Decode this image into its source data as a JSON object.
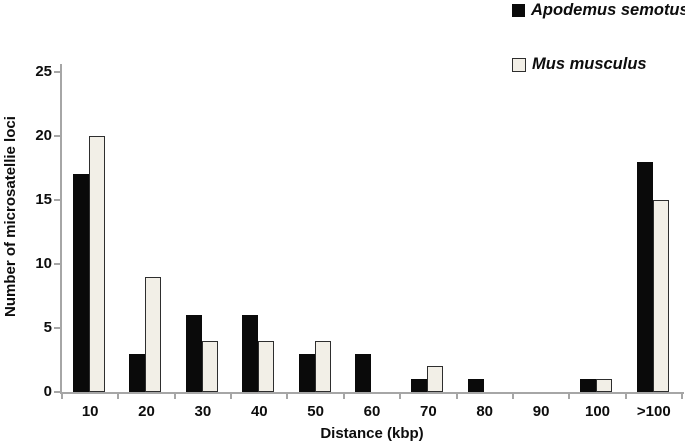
{
  "chart_data": {
    "type": "bar",
    "categories": [
      "10",
      "20",
      "30",
      "40",
      "50",
      "60",
      "70",
      "80",
      "90",
      "100",
      ">100"
    ],
    "series": [
      {
        "name": "Apodemus semotus",
        "values": [
          17,
          3,
          6,
          6,
          3,
          3,
          1,
          1,
          0,
          1,
          18
        ],
        "fill": "#0a0a0a",
        "border": "#0a0a0a"
      },
      {
        "name": "Mus musculus",
        "values": [
          20,
          9,
          4,
          4,
          4,
          0,
          2,
          0,
          0,
          1,
          15
        ],
        "fill": "#f2efe7",
        "border": "#2e2e2e"
      }
    ],
    "title": "",
    "xlabel": "Distance (kbp)",
    "ylabel": "Number of microsatellie loci",
    "ylim": [
      0,
      25
    ],
    "yticks": [
      0,
      5,
      10,
      15,
      20,
      25
    ],
    "grid": "off",
    "legend_position": "top-right",
    "axis_color": "#a6a6a6",
    "text_color": "#0d0d0d",
    "background_color": "#ffffff"
  }
}
